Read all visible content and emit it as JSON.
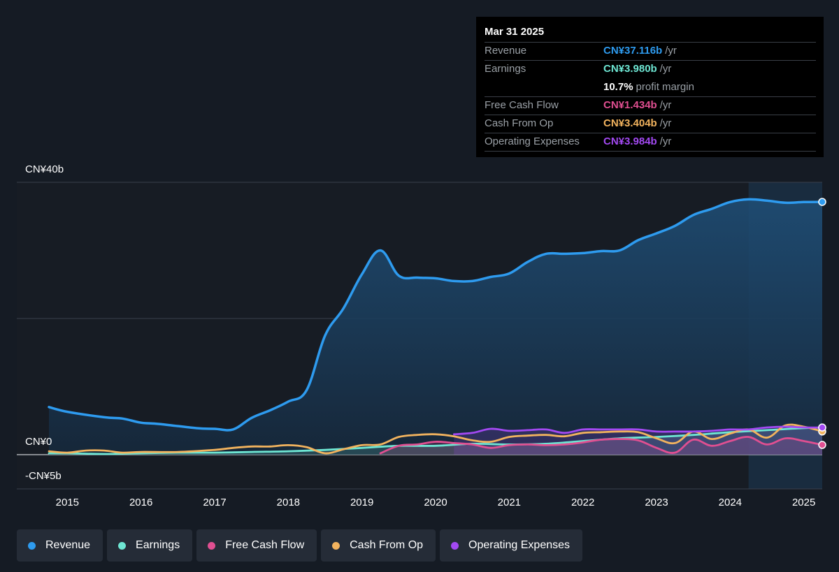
{
  "tooltip": {
    "date": "Mar 31 2025",
    "rows": [
      {
        "label": "Revenue",
        "value": "CN¥37.116b",
        "unit": "/yr",
        "color": "#2e9bef"
      },
      {
        "label": "Earnings",
        "value": "CN¥3.980b",
        "unit": "/yr",
        "color": "#6ee6d3"
      },
      {
        "label": "",
        "value": "10.7%",
        "unit": "profit margin",
        "color": "#ffffff"
      },
      {
        "label": "Free Cash Flow",
        "value": "CN¥1.434b",
        "unit": "/yr",
        "color": "#e04f91"
      },
      {
        "label": "Cash From Op",
        "value": "CN¥3.404b",
        "unit": "/yr",
        "color": "#f2b35e"
      },
      {
        "label": "Operating Expenses",
        "value": "CN¥3.984b",
        "unit": "/yr",
        "color": "#a349f2"
      }
    ]
  },
  "legend": [
    {
      "label": "Revenue",
      "color": "#2e9bef"
    },
    {
      "label": "Earnings",
      "color": "#6ee6d3"
    },
    {
      "label": "Free Cash Flow",
      "color": "#e04f91"
    },
    {
      "label": "Cash From Op",
      "color": "#f2b35e"
    },
    {
      "label": "Operating Expenses",
      "color": "#a349f2"
    }
  ],
  "chart_data": {
    "type": "line",
    "ylim": [
      -5,
      40
    ],
    "xlim": [
      2014.5,
      2025.25
    ],
    "y_tick_labels": [
      {
        "label": "CN¥40b",
        "value": 40
      },
      {
        "label": "CN¥0",
        "value": 0
      },
      {
        "label": "-CN¥5b",
        "value": -5
      }
    ],
    "x_tick_labels": [
      "2015",
      "2016",
      "2017",
      "2018",
      "2019",
      "2020",
      "2021",
      "2022",
      "2023",
      "2024",
      "2025"
    ],
    "x_ticks": [
      2015,
      2016,
      2017,
      2018,
      2019,
      2020,
      2021,
      2022,
      2023,
      2024,
      2025
    ],
    "gridlines_y": [
      40,
      20,
      0
    ],
    "highlight_start": 2024.25,
    "series": [
      {
        "name": "Revenue",
        "color": "#2e9bef",
        "fill": true,
        "points": [
          [
            2014.75,
            7.0
          ],
          [
            2015.0,
            6.3
          ],
          [
            2015.5,
            5.5
          ],
          [
            2015.75,
            5.3
          ],
          [
            2016.0,
            4.7
          ],
          [
            2016.25,
            4.5
          ],
          [
            2016.75,
            3.9
          ],
          [
            2017.0,
            3.8
          ],
          [
            2017.25,
            3.7
          ],
          [
            2017.5,
            5.4
          ],
          [
            2017.75,
            6.5
          ],
          [
            2018.0,
            7.8
          ],
          [
            2018.25,
            9.5
          ],
          [
            2018.5,
            17.5
          ],
          [
            2018.75,
            21.5
          ],
          [
            2019.0,
            26.5
          ],
          [
            2019.25,
            30.0
          ],
          [
            2019.5,
            26.3
          ],
          [
            2019.75,
            26.0
          ],
          [
            2020.0,
            25.9
          ],
          [
            2020.25,
            25.5
          ],
          [
            2020.5,
            25.5
          ],
          [
            2020.75,
            26.1
          ],
          [
            2021.0,
            26.6
          ],
          [
            2021.25,
            28.3
          ],
          [
            2021.5,
            29.5
          ],
          [
            2021.75,
            29.5
          ],
          [
            2022.0,
            29.6
          ],
          [
            2022.25,
            29.9
          ],
          [
            2022.5,
            30.0
          ],
          [
            2022.75,
            31.5
          ],
          [
            2023.0,
            32.5
          ],
          [
            2023.25,
            33.6
          ],
          [
            2023.5,
            35.2
          ],
          [
            2023.75,
            36.1
          ],
          [
            2024.0,
            37.1
          ],
          [
            2024.25,
            37.5
          ],
          [
            2024.5,
            37.3
          ],
          [
            2024.75,
            37.0
          ],
          [
            2025.0,
            37.1
          ],
          [
            2025.25,
            37.116
          ]
        ]
      },
      {
        "name": "Earnings",
        "color": "#6ee6d3",
        "fill": true,
        "points": [
          [
            2014.75,
            0.2
          ],
          [
            2015.0,
            0.2
          ],
          [
            2015.5,
            0.1
          ],
          [
            2016.0,
            0.2
          ],
          [
            2016.5,
            0.3
          ],
          [
            2017.0,
            0.3
          ],
          [
            2017.5,
            0.4
          ],
          [
            2018.0,
            0.5
          ],
          [
            2018.5,
            0.7
          ],
          [
            2019.0,
            1.0
          ],
          [
            2019.5,
            1.3
          ],
          [
            2020.0,
            1.3
          ],
          [
            2020.5,
            1.6
          ],
          [
            2021.0,
            1.5
          ],
          [
            2021.5,
            1.6
          ],
          [
            2022.0,
            2.0
          ],
          [
            2022.5,
            2.4
          ],
          [
            2023.0,
            2.6
          ],
          [
            2023.5,
            2.9
          ],
          [
            2024.0,
            3.3
          ],
          [
            2024.5,
            3.6
          ],
          [
            2025.0,
            3.9
          ],
          [
            2025.25,
            3.98
          ]
        ]
      },
      {
        "name": "Free Cash Flow",
        "color": "#e04f91",
        "fill": true,
        "points": [
          [
            2019.25,
            0.2
          ],
          [
            2019.5,
            1.3
          ],
          [
            2019.75,
            1.5
          ],
          [
            2020.0,
            1.9
          ],
          [
            2020.25,
            1.7
          ],
          [
            2020.5,
            1.5
          ],
          [
            2020.75,
            1.0
          ],
          [
            2021.0,
            1.4
          ],
          [
            2021.25,
            1.5
          ],
          [
            2021.5,
            1.4
          ],
          [
            2021.75,
            1.5
          ],
          [
            2022.0,
            1.8
          ],
          [
            2022.25,
            2.2
          ],
          [
            2022.5,
            2.3
          ],
          [
            2022.75,
            2.1
          ],
          [
            2023.0,
            1.0
          ],
          [
            2023.25,
            0.3
          ],
          [
            2023.5,
            2.2
          ],
          [
            2023.75,
            1.3
          ],
          [
            2024.0,
            2.0
          ],
          [
            2024.25,
            2.6
          ],
          [
            2024.5,
            1.5
          ],
          [
            2024.75,
            2.4
          ],
          [
            2025.0,
            2.0
          ],
          [
            2025.25,
            1.434
          ]
        ]
      },
      {
        "name": "Cash From Op",
        "color": "#f2b35e",
        "fill": false,
        "points": [
          [
            2014.75,
            0.5
          ],
          [
            2015.0,
            0.3
          ],
          [
            2015.25,
            0.6
          ],
          [
            2015.5,
            0.6
          ],
          [
            2015.75,
            0.3
          ],
          [
            2016.0,
            0.4
          ],
          [
            2016.5,
            0.4
          ],
          [
            2017.0,
            0.7
          ],
          [
            2017.25,
            1.0
          ],
          [
            2017.5,
            1.2
          ],
          [
            2017.75,
            1.2
          ],
          [
            2018.0,
            1.4
          ],
          [
            2018.25,
            1.1
          ],
          [
            2018.5,
            0.2
          ],
          [
            2018.75,
            0.8
          ],
          [
            2019.0,
            1.4
          ],
          [
            2019.25,
            1.5
          ],
          [
            2019.5,
            2.6
          ],
          [
            2019.75,
            2.9
          ],
          [
            2020.0,
            3.0
          ],
          [
            2020.25,
            2.7
          ],
          [
            2020.5,
            2.1
          ],
          [
            2020.75,
            1.9
          ],
          [
            2021.0,
            2.6
          ],
          [
            2021.25,
            2.8
          ],
          [
            2021.5,
            2.9
          ],
          [
            2021.75,
            2.7
          ],
          [
            2022.0,
            3.2
          ],
          [
            2022.25,
            3.3
          ],
          [
            2022.5,
            3.4
          ],
          [
            2022.75,
            3.3
          ],
          [
            2023.0,
            2.4
          ],
          [
            2023.25,
            1.7
          ],
          [
            2023.5,
            3.4
          ],
          [
            2023.75,
            2.3
          ],
          [
            2024.0,
            3.1
          ],
          [
            2024.25,
            3.7
          ],
          [
            2024.5,
            2.5
          ],
          [
            2024.75,
            4.3
          ],
          [
            2025.0,
            4.1
          ],
          [
            2025.25,
            3.404
          ]
        ]
      },
      {
        "name": "Operating Expenses",
        "color": "#a349f2",
        "fill": true,
        "points": [
          [
            2020.25,
            3.0
          ],
          [
            2020.5,
            3.2
          ],
          [
            2020.75,
            3.8
          ],
          [
            2021.0,
            3.5
          ],
          [
            2021.25,
            3.6
          ],
          [
            2021.5,
            3.7
          ],
          [
            2021.75,
            3.2
          ],
          [
            2022.0,
            3.7
          ],
          [
            2022.25,
            3.7
          ],
          [
            2022.5,
            3.7
          ],
          [
            2022.75,
            3.7
          ],
          [
            2023.0,
            3.4
          ],
          [
            2023.25,
            3.4
          ],
          [
            2023.5,
            3.4
          ],
          [
            2023.75,
            3.5
          ],
          [
            2024.0,
            3.7
          ],
          [
            2024.25,
            3.7
          ],
          [
            2024.5,
            4.0
          ],
          [
            2024.75,
            4.1
          ],
          [
            2025.0,
            4.0
          ],
          [
            2025.25,
            3.984
          ]
        ]
      }
    ]
  }
}
